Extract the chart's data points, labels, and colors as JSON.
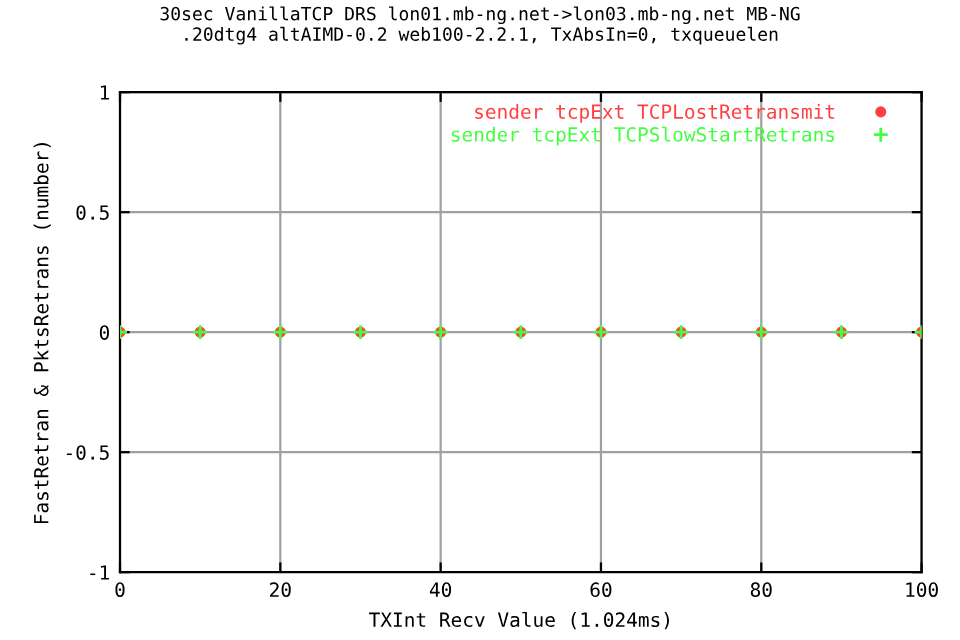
{
  "chart_data": {
    "type": "scatter",
    "title": "30sec VanillaTCP DRS lon01.mb-ng.net->lon03.mb-ng.net MB-NG\n.20dtg4 altAIMD-0.2 web100-2.2.1, TxAbsIn=0, txqueuelen",
    "xlabel": "TXInt Recv Value (1.024ms)",
    "ylabel": "FastRetran & PktsRetrans (number)",
    "x": [
      0,
      10,
      20,
      30,
      40,
      50,
      60,
      70,
      80,
      90,
      100
    ],
    "series": [
      {
        "name": "sender tcpExt TCPLostRetransmit",
        "color": "#ff4040",
        "marker": "circle",
        "values": [
          0,
          0,
          0,
          0,
          0,
          0,
          0,
          0,
          0,
          0,
          0
        ]
      },
      {
        "name": "sender tcpExt TCPSlowStartRetrans",
        "color": "#40ff40",
        "marker": "cross",
        "values": [
          0,
          0,
          0,
          0,
          0,
          0,
          0,
          0,
          0,
          0,
          0
        ]
      }
    ],
    "xlim": [
      0,
      100
    ],
    "ylim": [
      -1,
      1
    ],
    "xticks": [
      0,
      20,
      40,
      60,
      80,
      100
    ],
    "yticks": [
      -1,
      -0.5,
      0,
      0.5,
      1
    ],
    "grid": true,
    "legend": "top right"
  }
}
